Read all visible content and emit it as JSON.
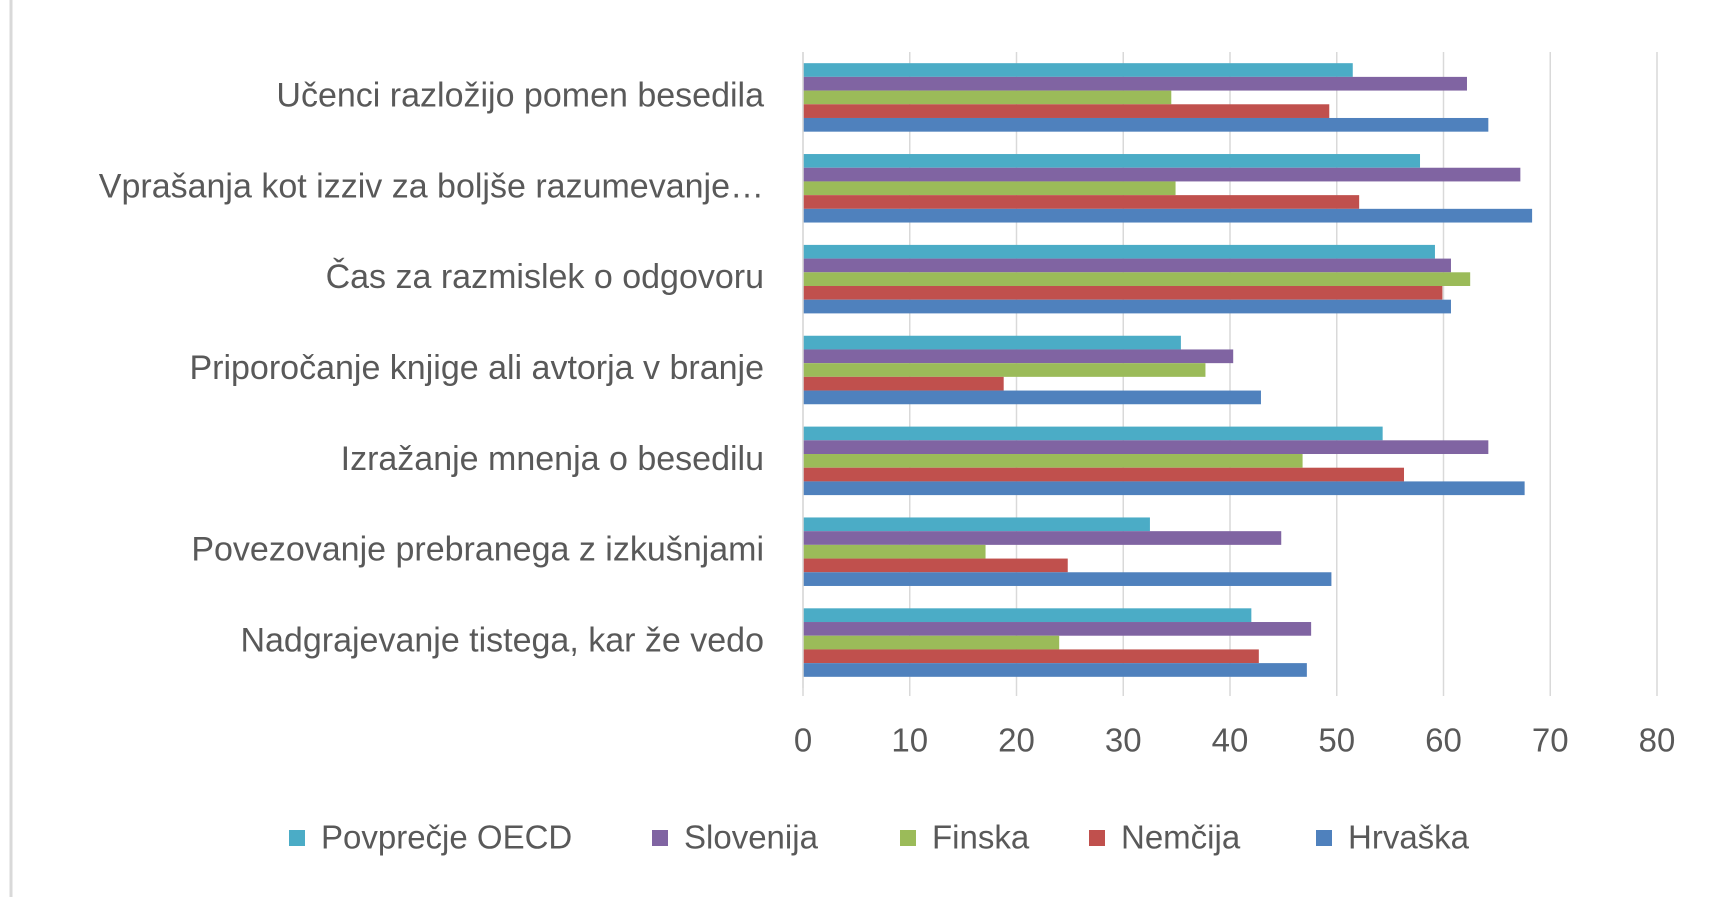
{
  "chart_data": {
    "type": "hbar",
    "categories": [
      "Učenci razložijo pomen besedila",
      "Vprašanja kot izziv za boljše razumevanje…",
      "Čas za razmislek o odgovoru",
      "Priporočanje knjige ali avtorja v branje",
      "Izražanje mnenja o besedilu",
      "Povezovanje prebranega z izkušnjami",
      "Nadgrajevanje tistega, kar že vedo"
    ],
    "series": [
      {
        "name": "Povprečje OECD",
        "color": "#4bacc6",
        "values": [
          51.5,
          57.8,
          59.2,
          35.4,
          54.3,
          32.5,
          42.0
        ]
      },
      {
        "name": "Slovenija",
        "color": "#8064a2",
        "values": [
          62.2,
          67.2,
          60.7,
          40.3,
          64.2,
          44.8,
          47.6
        ]
      },
      {
        "name": "Finska",
        "color": "#9bbb59",
        "values": [
          34.5,
          34.9,
          62.5,
          37.7,
          46.8,
          17.1,
          24.0
        ]
      },
      {
        "name": "Nemčija",
        "color": "#c0504d",
        "values": [
          49.3,
          52.1,
          59.9,
          18.8,
          56.3,
          24.8,
          42.7
        ]
      },
      {
        "name": "Hrvaška",
        "color": "#4f81bd",
        "values": [
          64.2,
          68.3,
          60.7,
          42.9,
          67.6,
          49.5,
          47.2
        ]
      }
    ],
    "xlim": [
      0,
      80
    ],
    "xticks": [
      0,
      10,
      20,
      30,
      40,
      50,
      60,
      70,
      80
    ],
    "grid": true,
    "legend": "bottom"
  }
}
